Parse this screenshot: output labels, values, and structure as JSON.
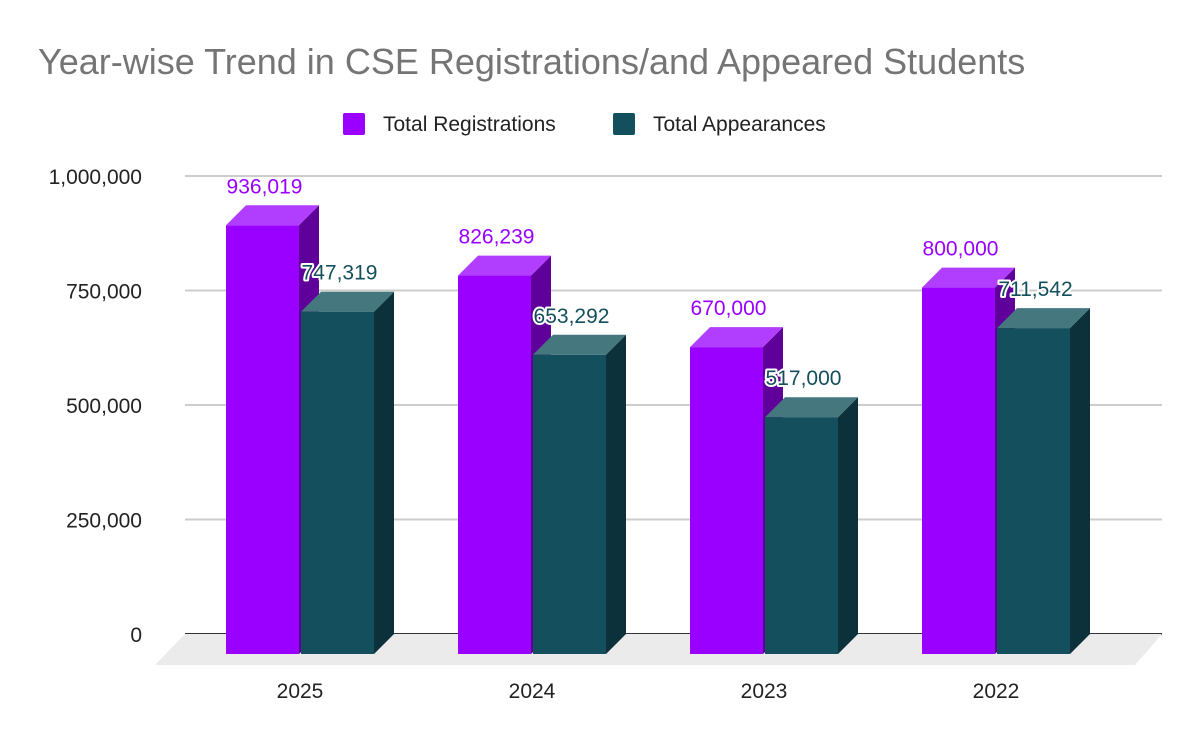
{
  "chart_data": {
    "type": "bar",
    "title": "Year-wise Trend in CSE Registrations/and Appeared Students",
    "categories": [
      "2025",
      "2024",
      "2023",
      "2022"
    ],
    "series": [
      {
        "name": "Total Registrations",
        "color": "#9900ff",
        "values": [
          936019,
          826239,
          670000,
          800000
        ],
        "labels": [
          "936,019",
          "826,239",
          "670,000",
          "800,000"
        ]
      },
      {
        "name": "Total Appearances",
        "color": "#134f5c",
        "values": [
          747319,
          653292,
          517000,
          711542
        ],
        "labels": [
          "747,319",
          "653,292",
          "517,000",
          "711,542"
        ]
      }
    ],
    "yticks": [
      0,
      250000,
      500000,
      750000,
      1000000
    ],
    "ytick_labels": [
      "0",
      "250,000",
      "500,000",
      "750,000",
      "1,000,000"
    ],
    "ylim": [
      0,
      1000000
    ],
    "xlabel": "",
    "ylabel": "",
    "grid": true,
    "legend": "top",
    "style": "3d"
  }
}
